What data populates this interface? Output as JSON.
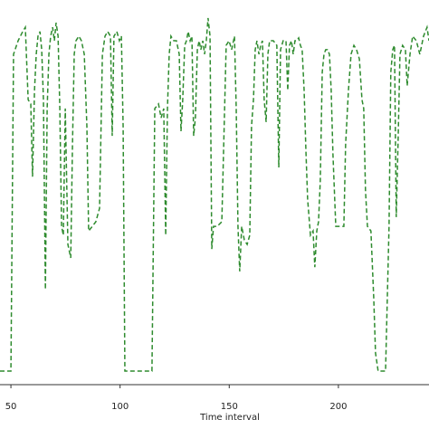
{
  "chart_data": {
    "type": "line",
    "x_label": "Time interval",
    "x": [
      45.0,
      50.0,
      51.2,
      53.3,
      55.4,
      56.6,
      57.9,
      59.1,
      59.9,
      60.8,
      61.6,
      62.4,
      63.3,
      64.1,
      64.9,
      65.8,
      66.6,
      67.4,
      68.2,
      69.1,
      69.9,
      70.7,
      71.6,
      72.4,
      73.2,
      74.0,
      74.9,
      76.1,
      77.4,
      78.2,
      79.0,
      79.8,
      81.1,
      82.3,
      83.6,
      84.8,
      85.6,
      87.3,
      88.9,
      90.6,
      91.9,
      93.1,
      94.3,
      95.6,
      96.4,
      97.2,
      98.5,
      99.7,
      100.6,
      101.4,
      102.2,
      111.3,
      114.6,
      115.9,
      117.6,
      118.8,
      120.0,
      120.9,
      121.7,
      122.5,
      123.3,
      124.6,
      125.8,
      127.1,
      127.9,
      128.7,
      129.6,
      130.4,
      131.2,
      132.1,
      132.9,
      133.7,
      134.5,
      135.4,
      136.2,
      137.0,
      137.9,
      138.7,
      139.5,
      140.3,
      141.2,
      142.0,
      142.8,
      144.5,
      146.6,
      148.6,
      149.9,
      151.1,
      152.4,
      153.2,
      154.0,
      154.8,
      155.7,
      156.9,
      158.2,
      159.4,
      160.2,
      161.1,
      161.9,
      162.7,
      163.6,
      164.4,
      165.2,
      166.0,
      166.9,
      167.7,
      168.5,
      170.2,
      171.8,
      172.7,
      173.5,
      174.7,
      176.0,
      176.8,
      177.6,
      178.5,
      179.3,
      180.1,
      180.9,
      181.8,
      182.6,
      183.4,
      184.3,
      185.1,
      185.9,
      187.2,
      188.4,
      189.2,
      190.1,
      190.9,
      191.7,
      192.6,
      193.4,
      194.2,
      195.0,
      195.9,
      196.7,
      197.5,
      198.8,
      200.8,
      202.5,
      203.3,
      204.6,
      205.8,
      207.1,
      208.3,
      209.6,
      210.8,
      211.6,
      212.4,
      213.3,
      214.9,
      216.2,
      217.0,
      218.2,
      221.6,
      222.4,
      223.2,
      224.0,
      224.9,
      225.7,
      226.5,
      227.4,
      228.2,
      229.4,
      230.7,
      231.5,
      232.8,
      234.0,
      235.7,
      237.3,
      239.0,
      240.6,
      241.5
    ],
    "series": [
      {
        "color": "#2e8b2e",
        "values": [
          0,
          0,
          89.3,
          93.1,
          95.7,
          96.9,
          76.5,
          75.3,
          54.8,
          79.1,
          89.3,
          94.4,
          95.7,
          90.6,
          76.5,
          23.0,
          74.0,
          89.3,
          94.4,
          96.9,
          93.1,
          98.2,
          94.4,
          74.0,
          40.8,
          38.3,
          74.0,
          35.7,
          31.9,
          63.8,
          89.3,
          93.1,
          94.4,
          93.1,
          89.3,
          68.9,
          39.5,
          40.8,
          42.1,
          45.9,
          89.3,
          94.4,
          95.7,
          94.4,
          66.3,
          94.4,
          95.7,
          93.1,
          94.4,
          68.9,
          0,
          0,
          0,
          74.0,
          75.3,
          71.4,
          74.0,
          38.3,
          74.0,
          89.3,
          94.4,
          93.1,
          93.1,
          89.3,
          67.6,
          76.5,
          91.8,
          93.1,
          95.7,
          93.1,
          94.4,
          66.3,
          71.4,
          90.6,
          93.1,
          90.6,
          93.1,
          89.3,
          93.1,
          99.5,
          94.4,
          34.4,
          40.8,
          40.8,
          42.1,
          91.8,
          93.1,
          90.6,
          94.4,
          74.0,
          40.8,
          28.1,
          40.8,
          37.0,
          35.7,
          38.3,
          68.9,
          76.5,
          90.6,
          93.1,
          89.3,
          91.8,
          93.1,
          76.5,
          70.2,
          89.3,
          93.1,
          93.1,
          91.8,
          57.4,
          90.6,
          93.1,
          93.1,
          79.1,
          91.8,
          93.1,
          89.3,
          93.1,
          93.1,
          93.9,
          91.8,
          90.6,
          79.1,
          62.5,
          48.5,
          38.3,
          39.5,
          29.3,
          39.5,
          42.1,
          53.6,
          84.2,
          89.3,
          90.6,
          90.6,
          89.3,
          79.1,
          61.2,
          40.8,
          40.8,
          40.8,
          63.8,
          79.1,
          89.3,
          91.8,
          90.6,
          88.0,
          76.5,
          74.0,
          51.0,
          40.8,
          39.5,
          20.4,
          5.1,
          0,
          0,
          20.4,
          40.8,
          84.2,
          90.6,
          91.8,
          43.4,
          66.3,
          89.3,
          91.8,
          90.6,
          80.4,
          89.3,
          94.4,
          93.1,
          89.3,
          94.4,
          96.9,
          93.1
        ]
      }
    ],
    "xlim": [
      45,
      241.5
    ],
    "xticks": [
      50,
      100,
      150,
      200
    ],
    "ylim": [
      -4,
      100
    ],
    "line_style": "dashed"
  }
}
